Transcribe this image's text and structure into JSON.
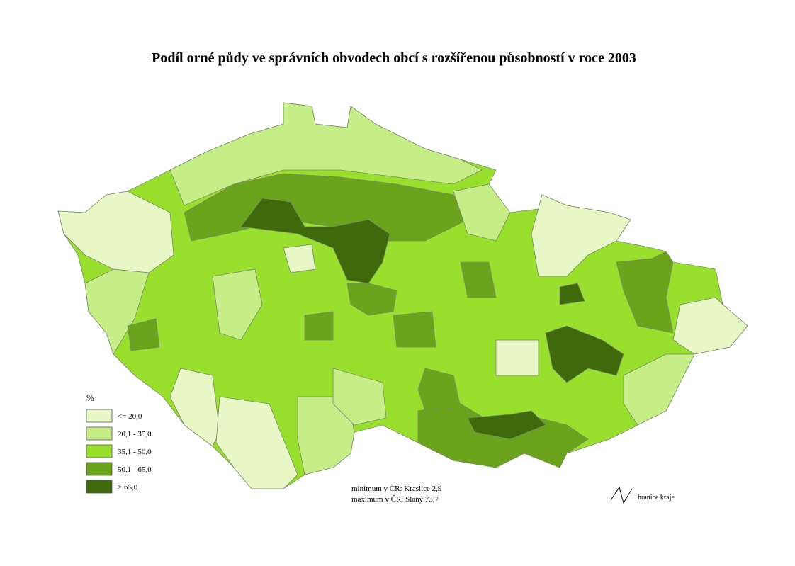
{
  "title": "Podíl orné půdy  ve správních obvodech obcí s rozšířenou působností v roce 2003",
  "legend": {
    "title": "%",
    "items": [
      {
        "label": "<= 20,0",
        "color": "#e8f7c6"
      },
      {
        "label": "20,1 - 35,0",
        "color": "#c6ee86"
      },
      {
        "label": "35,1 - 50,0",
        "color": "#98df2e"
      },
      {
        "label": "50,1 - 65,0",
        "color": "#6aa31c"
      },
      {
        "label": "> 65,0",
        "color": "#3e6a0c"
      }
    ]
  },
  "notes": [
    "minimum v ČR: Kraslice 2,9",
    "maximum v ČR: Slaný 73,7"
  ],
  "boundary_legend": "hranice kraje"
}
